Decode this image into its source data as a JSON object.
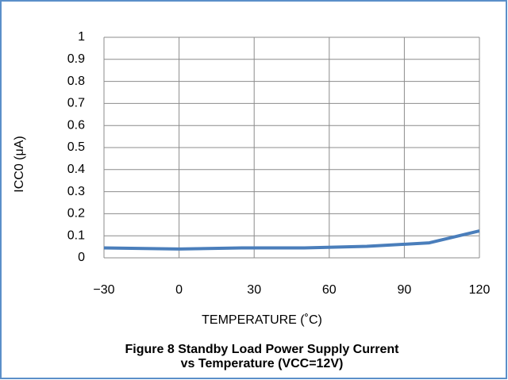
{
  "chart_data": {
    "type": "line",
    "title": [
      "Figure 8 Standby Load Power  Supply Current",
      "vs Temperature  (VCC=12V)"
    ],
    "xlabel": "TEMPERATURE (˚C)",
    "ylabel": "ICC0 (μA)",
    "x": [
      -30,
      0,
      25,
      50,
      75,
      100,
      120
    ],
    "series": [
      {
        "name": "ICC0",
        "color": "#4a7ebb",
        "values": [
          0.045,
          0.04,
          0.045,
          0.045,
          0.052,
          0.068,
          0.122
        ]
      }
    ],
    "xlim": [
      -30,
      120
    ],
    "xticks": [
      {
        "value": -30,
        "label": "−30"
      },
      0,
      30,
      60,
      90,
      120
    ],
    "ylim": [
      0,
      1
    ],
    "yticks": [
      0,
      0.1,
      0.2,
      0.3,
      0.4,
      0.5,
      0.6,
      0.7,
      0.8,
      0.9,
      1
    ],
    "grid": true
  }
}
